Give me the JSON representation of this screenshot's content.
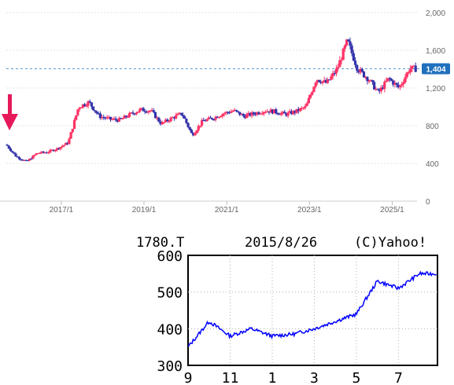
{
  "chart_data": [
    {
      "type": "candlestick",
      "title": "",
      "x_ticks": [
        "2017/1",
        "2019/1",
        "2021/1",
        "2023/1",
        "2025/1"
      ],
      "y_ticks": [
        "2,000",
        "1,600",
        "1,200",
        "800",
        "400",
        "0"
      ],
      "ylim": [
        0,
        2000
      ],
      "grid": true,
      "current_value": 1404,
      "current_label": "1,404",
      "up_color": "#ff3366",
      "down_color": "#3333aa",
      "marker_color": "#e6195a",
      "series": [
        {
          "name": "",
          "x": [
            "2015/9",
            "2015/12",
            "2016/3",
            "2016/6",
            "2016/9",
            "2016/12",
            "2017/3",
            "2017/6",
            "2017/9",
            "2017/12",
            "2018/3",
            "2018/6",
            "2018/9",
            "2018/12",
            "2019/3",
            "2019/6",
            "2019/9",
            "2019/12",
            "2020/3",
            "2020/6",
            "2020/9",
            "2020/12",
            "2021/3",
            "2021/6",
            "2021/9",
            "2021/12",
            "2022/3",
            "2022/6",
            "2022/9",
            "2022/12",
            "2023/3",
            "2023/6",
            "2023/9",
            "2023/12",
            "2024/3",
            "2024/6",
            "2024/9",
            "2024/12",
            "2025/3",
            "2025/6"
          ],
          "values": [
            600,
            470,
            420,
            510,
            520,
            560,
            620,
            1000,
            1050,
            900,
            870,
            860,
            920,
            970,
            960,
            820,
            880,
            930,
            700,
            850,
            880,
            930,
            960,
            900,
            930,
            960,
            950,
            920,
            950,
            1000,
            1300,
            1250,
            1400,
            1700,
            1400,
            1300,
            1150,
            1300,
            1200,
            1404
          ]
        }
      ]
    },
    {
      "type": "line",
      "header": [
        "1780.T",
        "2015/8/26",
        "(C)Yahoo!"
      ],
      "x_ticks": [
        "9",
        "11",
        "1",
        "3",
        "5",
        "7"
      ],
      "y_ticks": [
        "600",
        "500",
        "400",
        "300"
      ],
      "ylim": [
        300,
        600
      ],
      "line_color": "#0000ff",
      "series": [
        {
          "name": "",
          "x": [
            "2014/9",
            "2014/10",
            "2014/11",
            "2014/12",
            "2015/1",
            "2015/2",
            "2015/3",
            "2015/4",
            "2015/5",
            "2015/6",
            "2015/7",
            "2015/8"
          ],
          "values": [
            350,
            420,
            380,
            400,
            380,
            385,
            400,
            420,
            440,
            530,
            510,
            550
          ]
        }
      ]
    }
  ]
}
